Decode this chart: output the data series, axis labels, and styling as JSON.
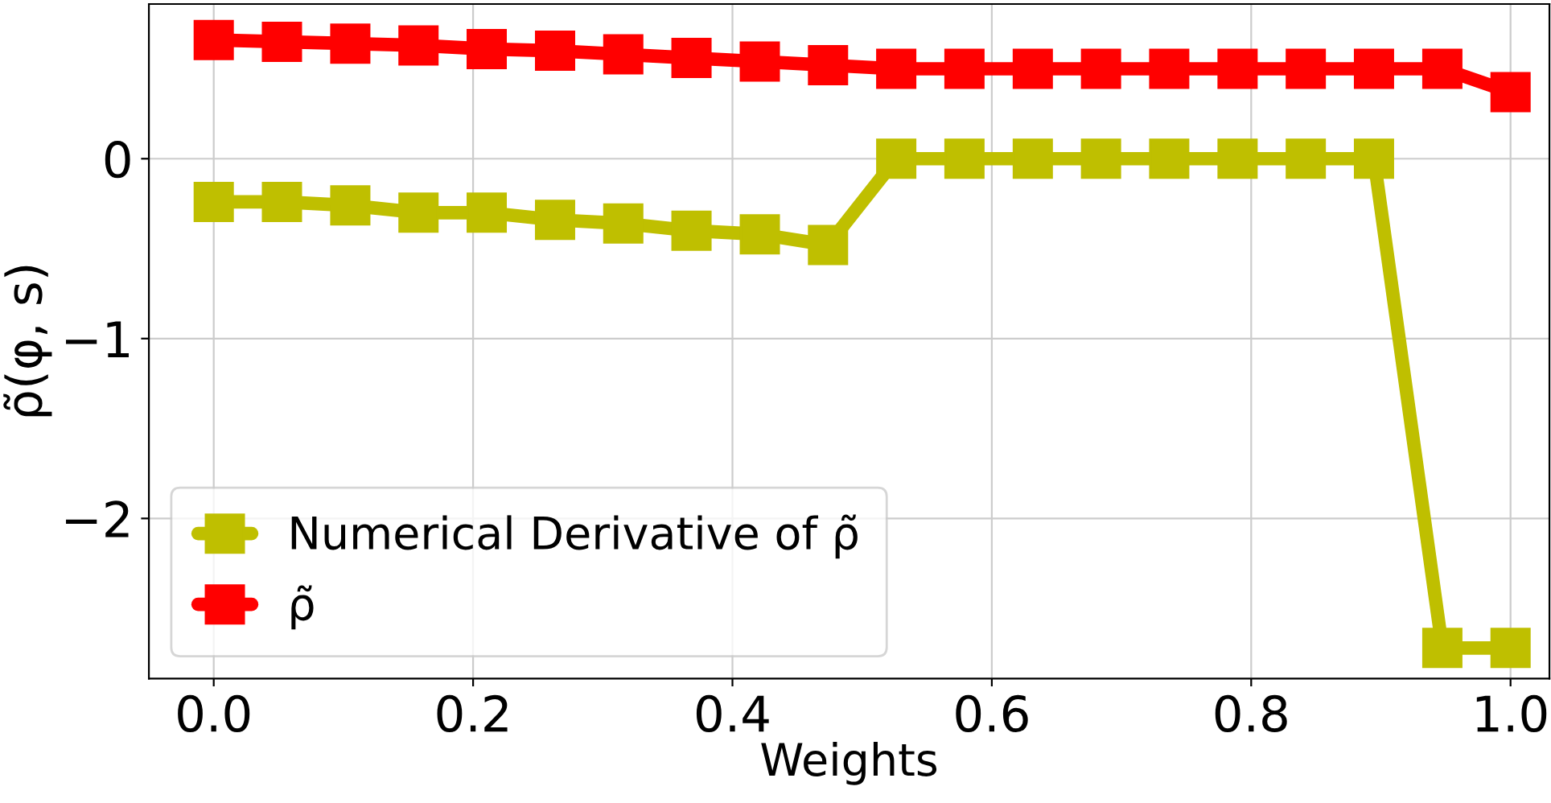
{
  "chart_data": {
    "type": "line",
    "xlabel": "Weights",
    "ylabel": "ρ̃(φ, s)",
    "x": [
      0.0,
      0.0526,
      0.1053,
      0.1579,
      0.2105,
      0.2632,
      0.3158,
      0.3684,
      0.4211,
      0.4737,
      0.5263,
      0.5789,
      0.6316,
      0.6842,
      0.7368,
      0.7895,
      0.8421,
      0.8947,
      0.9474,
      1.0
    ],
    "series": [
      {
        "name": "Numerical Derivative of ρ̃",
        "color": "#bfbf00",
        "values": [
          -0.24,
          -0.24,
          -0.26,
          -0.3,
          -0.3,
          -0.34,
          -0.36,
          -0.4,
          -0.42,
          -0.48,
          0.0,
          0.0,
          0.0,
          0.0,
          0.0,
          0.0,
          0.0,
          0.0,
          -2.72,
          -2.72
        ]
      },
      {
        "name": "ρ̃",
        "color": "#ff0000",
        "values": [
          0.66,
          0.65,
          0.64,
          0.63,
          0.61,
          0.6,
          0.58,
          0.56,
          0.54,
          0.52,
          0.5,
          0.5,
          0.5,
          0.5,
          0.5,
          0.5,
          0.5,
          0.5,
          0.5,
          0.37
        ]
      }
    ],
    "xlim": [
      -0.05,
      1.03
    ],
    "ylim": [
      -2.89,
      0.86
    ],
    "xticks": [
      {
        "value": 0.0,
        "label": "0.0"
      },
      0.2,
      0.4,
      0.6,
      0.8,
      {
        "value": 1.0,
        "label": "1.0"
      }
    ],
    "yticks": [
      {
        "value": -2,
        "label": "−2"
      },
      {
        "value": -1,
        "label": "−1"
      },
      0
    ],
    "grid": true,
    "legend": "bottom left",
    "marker": "square",
    "line_style": "solid"
  }
}
